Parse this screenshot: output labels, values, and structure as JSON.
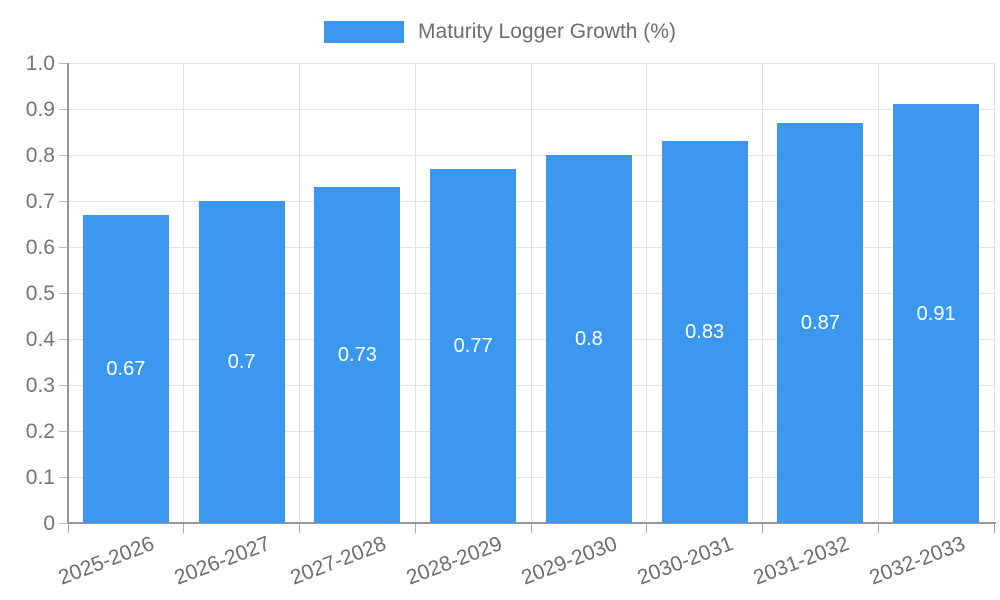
{
  "chart_data": {
    "type": "bar",
    "title": "Maturity Logger Growth (%)",
    "legend_position": "top",
    "categories": [
      "2025-2026",
      "2026-2027",
      "2027-2028",
      "2028-2029",
      "2029-2030",
      "2030-2031",
      "2031-2032",
      "2032-2033"
    ],
    "values": [
      0.67,
      0.7,
      0.73,
      0.77,
      0.8,
      0.83,
      0.87,
      0.91
    ],
    "bar_labels": [
      "0.67",
      "0.7",
      "0.73",
      "0.77",
      "0.8",
      "0.83",
      "0.87",
      "0.91"
    ],
    "xlabel": "",
    "ylabel": "",
    "ylim": [
      0,
      1
    ],
    "ytick_labels": [
      "0",
      "0.1",
      "0.2",
      "0.3",
      "0.4",
      "0.5",
      "0.6",
      "0.7",
      "0.8",
      "0.9",
      "1.0"
    ],
    "grid": true,
    "colors": {
      "bar": "#3b98ee",
      "bar_value_text": "#ffffff",
      "axis_line": "#979797",
      "grid_line": "#e3e3e3",
      "tick_text": "#757575",
      "legend_text": "#6e6e6e"
    }
  }
}
